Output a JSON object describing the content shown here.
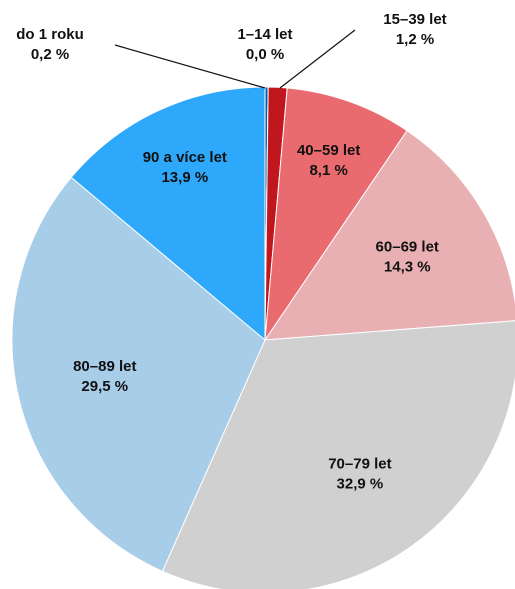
{
  "chart_data": {
    "type": "pie",
    "categories": [
      "do 1 roku",
      "1–14 let",
      "15–39 let",
      "40–59 let",
      "60–69 let",
      "70–79 let",
      "80–89 let",
      "90 a více let"
    ],
    "values": [
      0.2,
      0.0,
      1.2,
      8.1,
      14.3,
      32.9,
      29.5,
      13.9
    ],
    "value_labels": [
      "0,2 %",
      "0,0 %",
      "1,2 %",
      "8,1 %",
      "14,3 %",
      "32,9 %",
      "29,5 %",
      "13,9 %"
    ],
    "colors": [
      "#0b5ea8",
      "#7a0f14",
      "#c0171f",
      "#e96b70",
      "#e8b0b2",
      "#d0d0d0",
      "#a8cde8",
      "#2ea8fb"
    ]
  }
}
